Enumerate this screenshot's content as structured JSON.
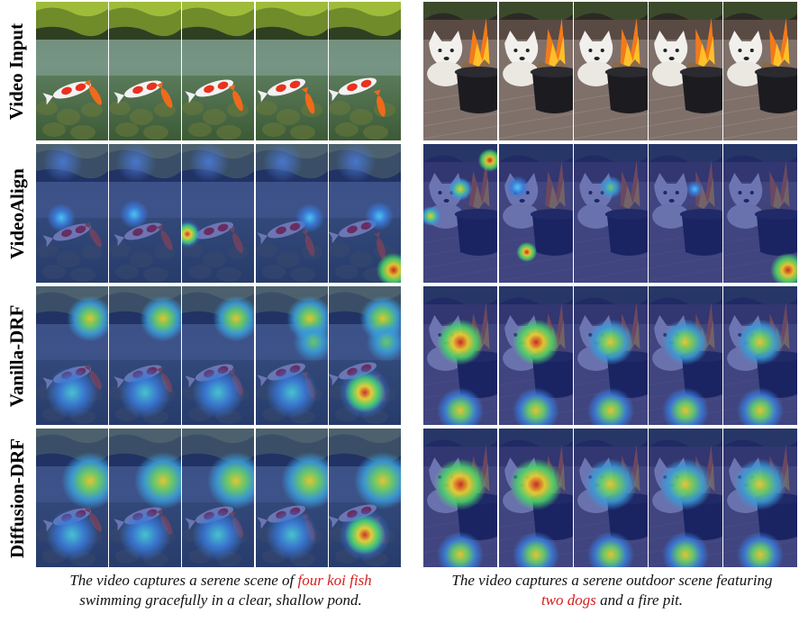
{
  "rows": [
    {
      "label": "Video Input",
      "mode": "input"
    },
    {
      "label": "VideoAlign",
      "mode": "videoalign"
    },
    {
      "label": "Vanilla-DRF",
      "mode": "vanilla"
    },
    {
      "label": "Diffusion-DRF",
      "mode": "diffusion"
    }
  ],
  "examples": [
    {
      "scene": "koi",
      "frame_count": 5
    },
    {
      "scene": "dog",
      "frame_count": 5
    }
  ],
  "captions": [
    {
      "line1_pre": "The video captures a serene scene of ",
      "line1_highlight": "four koi fish",
      "line2": "swimming gracefully in a clear, shallow pond."
    },
    {
      "line1_pre": "The video captures a serene outdoor scene featuring",
      "line2_highlight": "two dogs",
      "line2_post": " and a fire pit."
    }
  ],
  "colors": {
    "highlight": "#d42020",
    "heatmap_base": "#1a2a8c"
  }
}
